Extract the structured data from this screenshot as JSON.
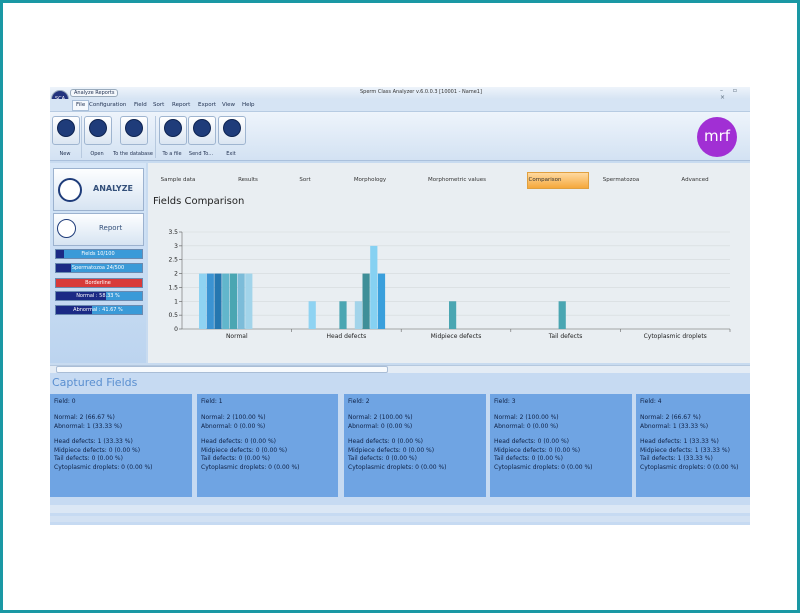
{
  "window": {
    "logo": "SCA",
    "tab": "Analyze Reports",
    "title": "Sperm Class Analyzer v.6.0.0.3 [10001 - Name1]"
  },
  "menu": [
    "File",
    "Configuration",
    "Field",
    "Sort",
    "Report",
    "Export",
    "View",
    "Help"
  ],
  "toolbar": [
    "New",
    "Open",
    "To the database",
    "To a file",
    "Send To...",
    "Exit"
  ],
  "brand": "mrf",
  "side": {
    "analyze": "ANALYZE",
    "report": "Report",
    "status": [
      "Fields 10/100",
      "Spermatozoa 24/500",
      "Borderline",
      "Normal : 58.33 %",
      "Abnormal : 41.67 %"
    ]
  },
  "tabs": [
    "Sample data",
    "Results",
    "Sort",
    "Morphology",
    "Morphometric values",
    "Comparison",
    "Spermatozoa",
    "Advanced"
  ],
  "chart_data": {
    "type": "bar",
    "title": "Fields Comparison",
    "categories": [
      "Normal",
      "Head defects",
      "Midpiece defects",
      "Tail defects",
      "Cytoplasmic droplets"
    ],
    "series": [
      {
        "color": "#8fd3f2",
        "values": [
          2,
          1,
          0,
          0,
          0
        ]
      },
      {
        "color": "#3b93d2",
        "values": [
          2,
          0,
          0,
          0,
          0
        ]
      },
      {
        "color": "#2577b0",
        "values": [
          2,
          0,
          0,
          0,
          0
        ]
      },
      {
        "color": "#62b6cc",
        "values": [
          2,
          0,
          0,
          0,
          0
        ]
      },
      {
        "color": "#4aa6b2",
        "values": [
          2,
          1,
          1,
          1,
          0
        ]
      },
      {
        "color": "#7cbcd9",
        "values": [
          2,
          0,
          0,
          0,
          0
        ]
      },
      {
        "color": "#a2d4ea",
        "values": [
          2,
          1,
          0,
          0,
          0
        ]
      },
      {
        "color": "#3f8f98",
        "values": [
          0,
          2,
          0,
          0,
          0
        ]
      },
      {
        "color": "#86d1f2",
        "values": [
          0,
          3,
          0,
          0,
          0
        ]
      },
      {
        "color": "#3a9fdc",
        "values": [
          0,
          2,
          0,
          0,
          0
        ]
      }
    ],
    "ylim": [
      0,
      3.5
    ],
    "yticks": [
      0,
      0.5,
      1,
      1.5,
      2,
      2.5,
      3,
      3.5
    ],
    "grid": true
  },
  "captured": {
    "title": "Captured Fields",
    "cards": [
      {
        "title": "Field: 0",
        "lines": [
          "Normal: 2 (66.67 %)",
          "Abnormal: 1 (33.33 %)",
          "Head defects: 1 (33.33 %)",
          "Midpiece defects: 0 (0.00 %)",
          "Tail defects: 0 (0.00 %)",
          "Cytoplasmic droplets: 0 (0.00 %)"
        ]
      },
      {
        "title": "Field: 1",
        "lines": [
          "Normal: 2 (100.00 %)",
          "Abnormal: 0 (0.00 %)",
          "Head defects: 0 (0.00 %)",
          "Midpiece defects: 0 (0.00 %)",
          "Tail defects: 0 (0.00 %)",
          "Cytoplasmic droplets: 0 (0.00 %)"
        ]
      },
      {
        "title": "Field: 2",
        "lines": [
          "Normal: 2 (100.00 %)",
          "Abnormal: 0 (0.00 %)",
          "Head defects: 0 (0.00 %)",
          "Midpiece defects: 0 (0.00 %)",
          "Tail defects: 0 (0.00 %)",
          "Cytoplasmic droplets: 0 (0.00 %)"
        ]
      },
      {
        "title": "Field: 3",
        "lines": [
          "Normal: 2 (100.00 %)",
          "Abnormal: 0 (0.00 %)",
          "Head defects: 0 (0.00 %)",
          "Midpiece defects: 0 (0.00 %)",
          "Tail defects: 0 (0.00 %)",
          "Cytoplasmic droplets: 0 (0.00 %)"
        ]
      },
      {
        "title": "Field: 4",
        "lines": [
          "Normal: 2 (66.67 %)",
          "Abnormal: 1 (33.33 %)",
          "Head defects: 1 (33.33 %)",
          "Midpiece defects: 1 (33.33 %)",
          "Tail defects: 1 (33.33 %)",
          "Cytoplasmic droplets: 0 (0.00 %)"
        ]
      }
    ]
  }
}
